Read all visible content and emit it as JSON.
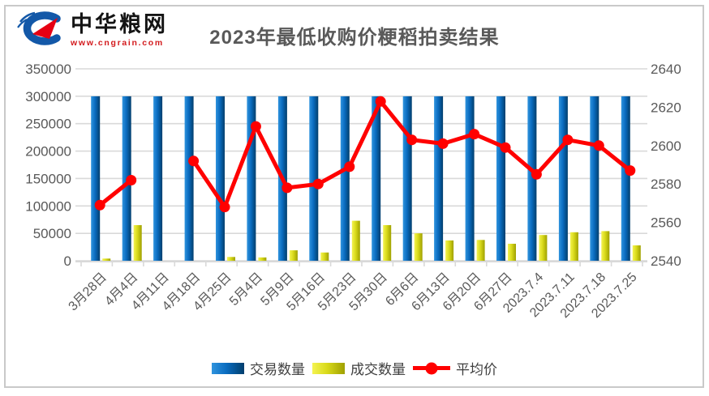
{
  "logo": {
    "site_name": "中华粮网",
    "site_url": "www.cngrain.com",
    "name_color": "#141414",
    "url_color": "#d31a1d",
    "icon_blue": "#1358a8",
    "icon_red": "#e60013"
  },
  "title": {
    "text": "2023年最低收购价粳稻拍卖结果",
    "color": "#595959"
  },
  "chart_data": {
    "type": "combo",
    "title": "2023年最低收购价粳稻拍卖结果",
    "categories": [
      "3月28日",
      "4月4日",
      "4月11日",
      "4月18日",
      "4月25日",
      "5月4日",
      "5月9日",
      "5月16日",
      "5月23日",
      "5月30日",
      "6月6日",
      "6月13日",
      "6月20日",
      "6月27日",
      "2023.7.4",
      "2023.7.11",
      "2023.7.18",
      "2023.7.25"
    ],
    "series": [
      {
        "name": "交易数量",
        "type": "bar",
        "axis": "left",
        "color_gradient": [
          "#3094de",
          "#0a6cc0",
          "#013e6c"
        ],
        "values": [
          300000,
          300000,
          300000,
          300000,
          300000,
          300000,
          300000,
          300000,
          300000,
          300000,
          300000,
          300000,
          300000,
          300000,
          300000,
          300000,
          300000,
          300000
        ]
      },
      {
        "name": "成交数量",
        "type": "bar",
        "axis": "left",
        "color_gradient": [
          "#f4f351",
          "#d9da1b",
          "#9fa000"
        ],
        "values": [
          4000,
          65000,
          0,
          0,
          7000,
          6000,
          19000,
          15000,
          73000,
          65000,
          50000,
          37000,
          38000,
          31000,
          47000,
          52000,
          54000,
          28000
        ]
      },
      {
        "name": "平均价",
        "type": "line",
        "axis": "right",
        "color": "#ff0000",
        "values": [
          2569,
          2582,
          null,
          2592,
          2568,
          2610,
          2578,
          2580,
          2589,
          2623,
          2603,
          2601,
          2606,
          2599,
          2585,
          2603,
          2600,
          2587
        ]
      }
    ],
    "left_axis": {
      "min": 0,
      "max": 350000,
      "step": 50000,
      "tick_labels": [
        "0",
        "50000",
        "100000",
        "150000",
        "200000",
        "250000",
        "300000",
        "350000"
      ]
    },
    "right_axis": {
      "min": 2540,
      "max": 2640,
      "step": 20,
      "tick_labels": [
        "2540",
        "2560",
        "2580",
        "2600",
        "2620",
        "2640"
      ]
    },
    "grid": true,
    "legend_position": "bottom",
    "gridline_color": "#d9d9d9",
    "axis_text_color": "#595959"
  }
}
